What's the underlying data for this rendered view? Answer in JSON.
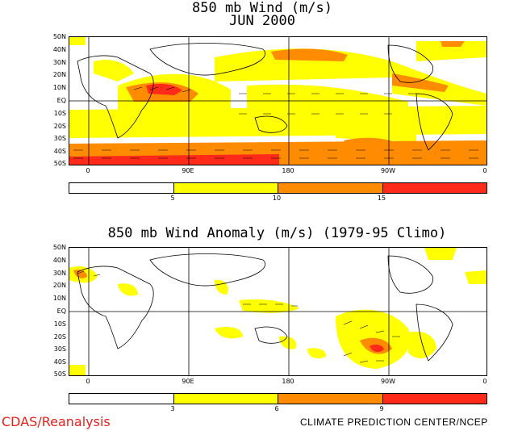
{
  "top_panel": {
    "title_line1": "850 mb Wind (m/s)",
    "title_line2": "JUN 2000",
    "lat_labels": [
      "50N",
      "40N",
      "30N",
      "20N",
      "10N",
      "EQ",
      "10S",
      "20S",
      "30S",
      "40S",
      "50S"
    ],
    "lon_labels": [
      "0",
      "90E",
      "180",
      "90W",
      "0"
    ],
    "colorbar_labels": [
      "5",
      "10",
      "15"
    ],
    "colors": [
      "#ffffff",
      "#ffff00",
      "#ff8c00",
      "#ff2a1a"
    ]
  },
  "bottom_panel": {
    "title": "850 mb Wind Anomaly (m/s) (1979-95 Climo)",
    "lat_labels": [
      "50N",
      "40N",
      "30N",
      "20N",
      "10N",
      "EQ",
      "10S",
      "20S",
      "30S",
      "40S",
      "50S"
    ],
    "lon_labels": [
      "0",
      "90E",
      "180",
      "90W",
      "0"
    ],
    "colorbar_labels": [
      "3",
      "6",
      "9"
    ],
    "colors": [
      "#ffffff",
      "#ffff00",
      "#ff8c00",
      "#ff2a1a"
    ]
  },
  "footer": {
    "left": "CDAS/Reanalysis",
    "right": "CLIMATE PREDICTION CENTER/NCEP"
  }
}
